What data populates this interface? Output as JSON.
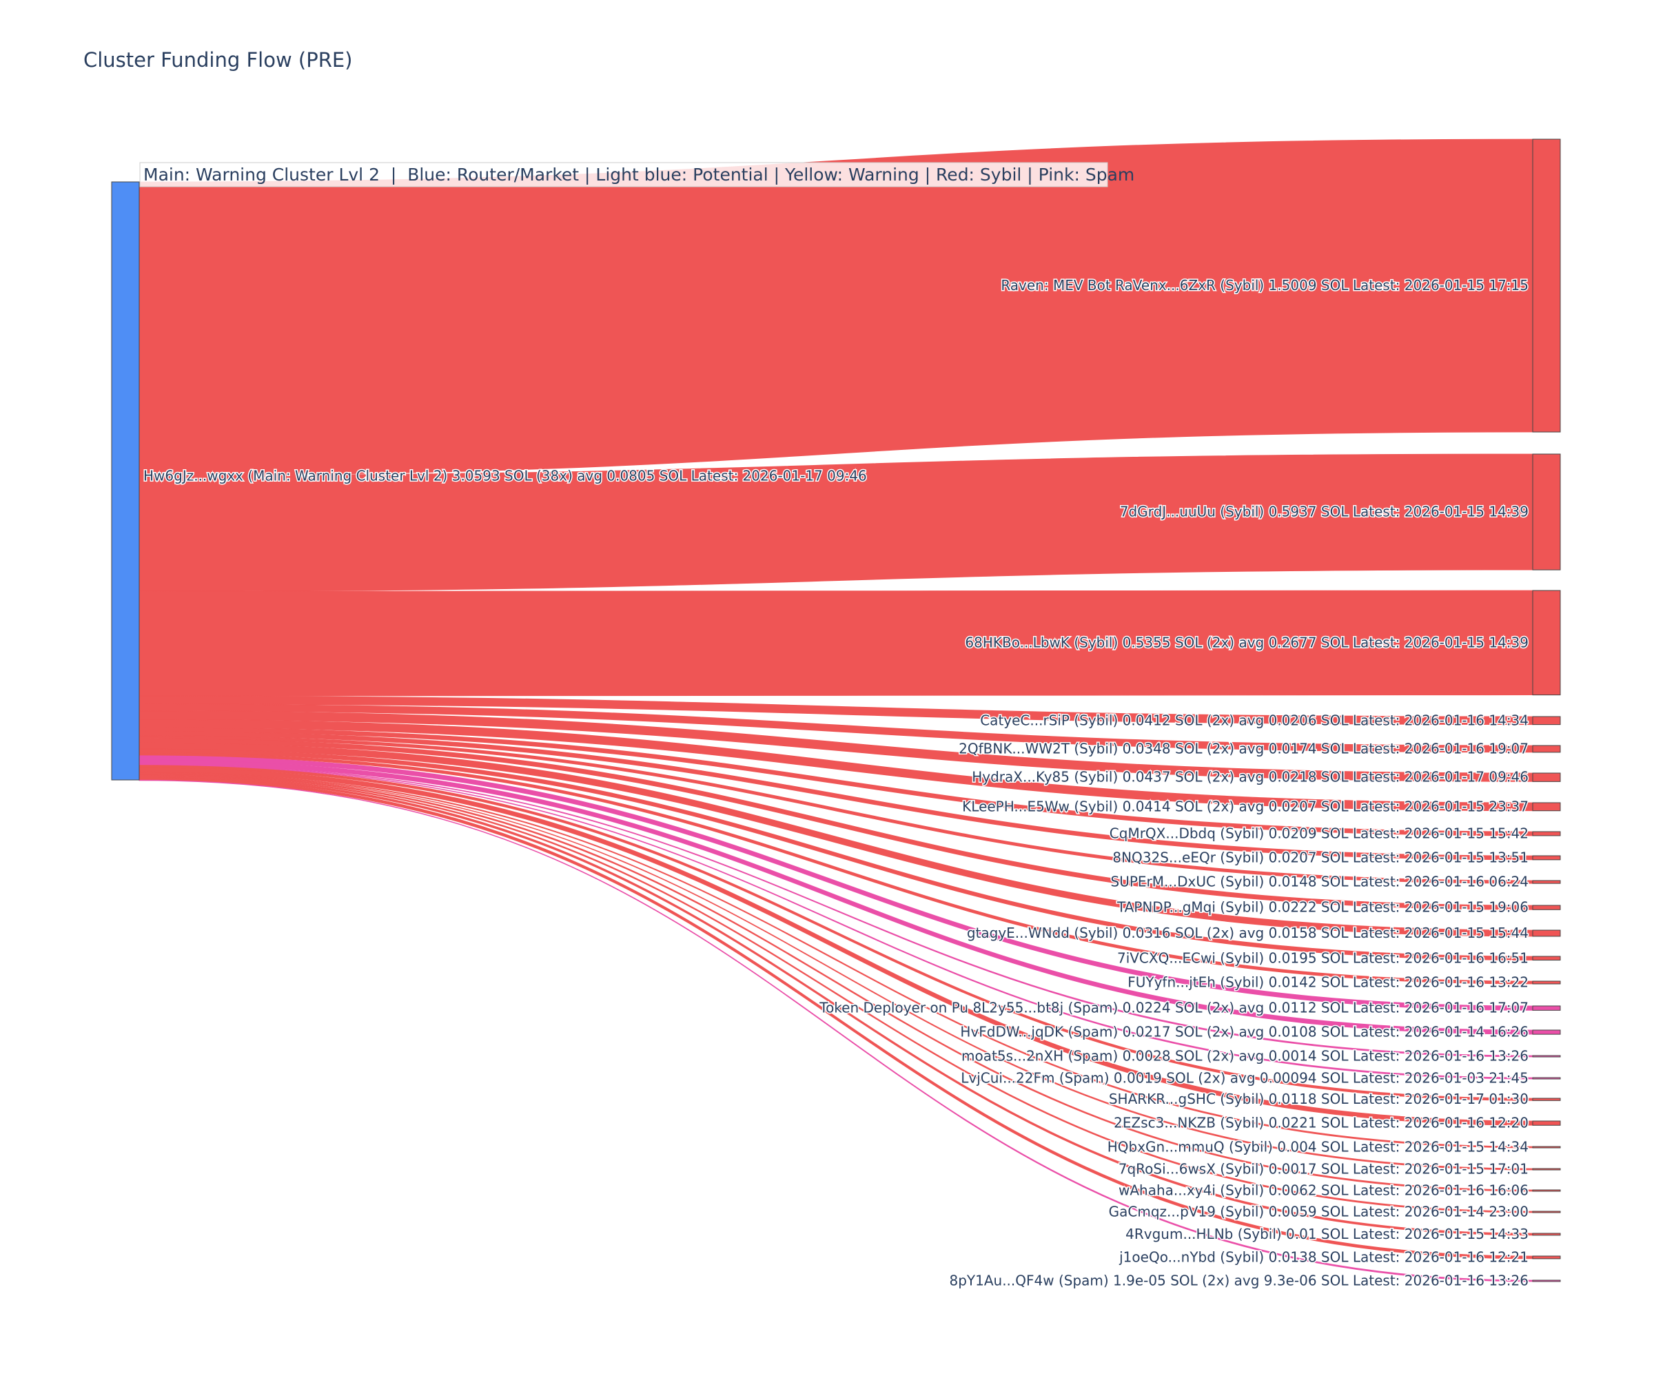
{
  "title": "Cluster Funding Flow (PRE)",
  "legend_text": "Main: Warning Cluster Lvl 2  |  Blue: Router/Market | Light blue: Potential | Yellow: Warning | Red: Sybil | Pink: Spam",
  "colors": {
    "source": "#4f8ef5",
    "sybil": "#ef5555",
    "spam": "#ea4fa8",
    "text": "#2a3f5f"
  },
  "chart_data": {
    "type": "sankey",
    "source": {
      "label": "Hw6gJz...wgxx (Main: Warning Cluster Lvl 2) 3.0593 SOL (38x) avg 0.0805 SOL Latest: 2026-01-17 09:46",
      "value": 3.0593
    },
    "targets": [
      {
        "label": "Raven: MEV Bot RaVenx...6ZxR (Sybil) 1.5009 SOL Latest: 2026-01-15 17:15",
        "value": 1.5009,
        "category": "sybil"
      },
      {
        "label": "7dGrdJ...uuUu (Sybil) 0.5937 SOL Latest: 2026-01-15 14:39",
        "value": 0.5937,
        "category": "sybil"
      },
      {
        "label": "68HKBo...LbwK (Sybil) 0.5355 SOL (2x) avg 0.2677 SOL Latest: 2026-01-15 14:39",
        "value": 0.5355,
        "category": "sybil"
      },
      {
        "label": "CatyeC...rSiP (Sybil) 0.0412 SOL (2x) avg 0.0206 SOL Latest: 2026-01-16 14:34",
        "value": 0.0412,
        "category": "sybil"
      },
      {
        "label": "2QfBNK...WW2T (Sybil) 0.0348 SOL (2x) avg 0.0174 SOL Latest: 2026-01-16 19:07",
        "value": 0.0348,
        "category": "sybil"
      },
      {
        "label": "HydraX...Ky85 (Sybil) 0.0437 SOL (2x) avg 0.0218 SOL Latest: 2026-01-17 09:46",
        "value": 0.0437,
        "category": "sybil"
      },
      {
        "label": "KLeePH...E5Ww (Sybil) 0.0414 SOL (2x) avg 0.0207 SOL Latest: 2026-01-15 23:37",
        "value": 0.0414,
        "category": "sybil"
      },
      {
        "label": "CqMrQX...Dbdq (Sybil) 0.0209 SOL Latest: 2026-01-15 15:42",
        "value": 0.0209,
        "category": "sybil"
      },
      {
        "label": "8NQ32S...eEQr (Sybil) 0.0207 SOL Latest: 2026-01-15 13:51",
        "value": 0.0207,
        "category": "sybil"
      },
      {
        "label": "SUPErM...DxUC (Sybil) 0.0148 SOL Latest: 2026-01-16 06:24",
        "value": 0.0148,
        "category": "sybil"
      },
      {
        "label": "TAPNDP...gMqi (Sybil) 0.0222 SOL Latest: 2026-01-15 19:06",
        "value": 0.0222,
        "category": "sybil"
      },
      {
        "label": "gtagyE...WNdd (Sybil) 0.0316 SOL (2x) avg 0.0158 SOL Latest: 2026-01-15 15:44",
        "value": 0.0316,
        "category": "sybil"
      },
      {
        "label": "7iVCXQ...ECwi (Sybil) 0.0195 SOL Latest: 2026-01-16 16:51",
        "value": 0.0195,
        "category": "sybil"
      },
      {
        "label": "FUYyfn...jtEh (Sybil) 0.0142 SOL Latest: 2026-01-16 13:22",
        "value": 0.0142,
        "category": "sybil"
      },
      {
        "label": "Token Deployer on Pu 8L2y55...bt8j (Spam) 0.0224 SOL (2x) avg 0.0112 SOL Latest: 2026-01-16 17:07",
        "value": 0.0224,
        "category": "spam"
      },
      {
        "label": "HvFdDW...jqDK (Spam) 0.0217 SOL (2x) avg 0.0108 SOL Latest: 2026-01-14 16:26",
        "value": 0.0217,
        "category": "spam"
      },
      {
        "label": "moat5s...2nXH (Spam) 0.0028 SOL (2x) avg 0.0014 SOL Latest: 2026-01-16 13:26",
        "value": 0.0028,
        "category": "spam"
      },
      {
        "label": "LvjCui...22Fm (Spam) 0.0019 SOL (2x) avg 0.00094 SOL Latest: 2026-01-03 21:45",
        "value": 0.0019,
        "category": "spam"
      },
      {
        "label": "SHARKR...gSHC (Sybil) 0.0118 SOL Latest: 2026-01-17 01:30",
        "value": 0.0118,
        "category": "sybil"
      },
      {
        "label": "2EZsc3...NKZB (Sybil) 0.0221 SOL Latest: 2026-01-16 12:20",
        "value": 0.0221,
        "category": "sybil"
      },
      {
        "label": "HQbxGn...mmuQ (Sybil) 0.004 SOL Latest: 2026-01-15 14:34",
        "value": 0.004,
        "category": "sybil"
      },
      {
        "label": "7qRoSi...6wsX (Sybil) 0.0017 SOL Latest: 2026-01-15 17:01",
        "value": 0.0017,
        "category": "sybil"
      },
      {
        "label": "wAhaha...xy4i (Sybil) 0.0062 SOL Latest: 2026-01-16 16:06",
        "value": 0.0062,
        "category": "sybil"
      },
      {
        "label": "GaCmqz...pV19 (Sybil) 0.0059 SOL Latest: 2026-01-14 23:00",
        "value": 0.0059,
        "category": "sybil"
      },
      {
        "label": "4Rvgum...HLNb (Sybil) 0.01 SOL Latest: 2026-01-15 14:33",
        "value": 0.01,
        "category": "sybil"
      },
      {
        "label": "j1oeQo...nYbd (Sybil) 0.0138 SOL Latest: 2026-01-16 12:21",
        "value": 0.0138,
        "category": "sybil"
      },
      {
        "label": "8pY1Au...QF4w (Spam) 1.9e-05 SOL (2x) avg 9.3e-06 SOL Latest: 2026-01-16 13:26",
        "value": 1.9e-05,
        "category": "spam"
      }
    ]
  }
}
